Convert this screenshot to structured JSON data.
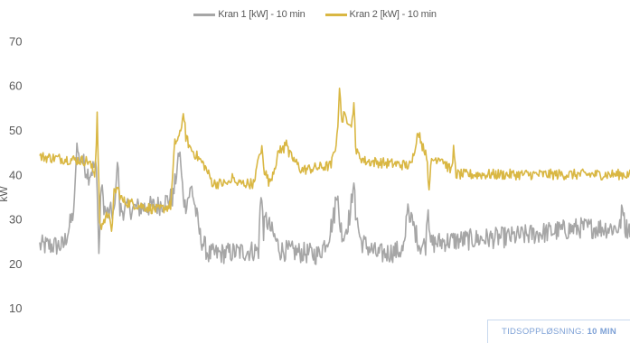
{
  "chart_data": {
    "type": "line",
    "title": "",
    "xlabel": "",
    "ylabel": "kW",
    "ylim": [
      0,
      70
    ],
    "yticks": [
      10,
      20,
      30,
      40,
      50,
      60,
      70
    ],
    "grid": false,
    "legend_position": "top-center",
    "n_points": 700,
    "series": [
      {
        "name": "Kran 1 [kW] - 10 min",
        "color": "#a6a6a6",
        "profile": [
          [
            0,
            24
          ],
          [
            28,
            24
          ],
          [
            38,
            30
          ],
          [
            42,
            34
          ],
          [
            48,
            44
          ],
          [
            58,
            40
          ],
          [
            65,
            42
          ],
          [
            72,
            38
          ],
          [
            78,
            31
          ],
          [
            95,
            32
          ],
          [
            140,
            33
          ],
          [
            158,
            35
          ],
          [
            163,
            42
          ],
          [
            167,
            40
          ],
          [
            172,
            33
          ],
          [
            180,
            37
          ],
          [
            190,
            26
          ],
          [
            200,
            22
          ],
          [
            260,
            23
          ],
          [
            268,
            30
          ],
          [
            275,
            27
          ],
          [
            285,
            23
          ],
          [
            330,
            22
          ],
          [
            342,
            26
          ],
          [
            350,
            32
          ],
          [
            360,
            26
          ],
          [
            372,
            34
          ],
          [
            380,
            25
          ],
          [
            400,
            22
          ],
          [
            430,
            23
          ],
          [
            440,
            30
          ],
          [
            450,
            24
          ],
          [
            480,
            25
          ],
          [
            560,
            26
          ],
          [
            640,
            28
          ],
          [
            697,
            28
          ]
        ],
        "spikes": [
          [
            44,
            48
          ],
          [
            70,
            21
          ],
          [
            92,
            47
          ],
          [
            166,
            44
          ],
          [
            262,
            38
          ],
          [
            352,
            37
          ],
          [
            371,
            38
          ],
          [
            436,
            36
          ],
          [
            460,
            34
          ],
          [
            690,
            33
          ]
        ],
        "noise": 2.4
      },
      {
        "name": "Kran 2 [kW] - 10 min",
        "color": "#d9b743",
        "profile": [
          [
            0,
            44
          ],
          [
            58,
            43
          ],
          [
            65,
            40
          ],
          [
            72,
            28
          ],
          [
            80,
            31
          ],
          [
            88,
            36
          ],
          [
            92,
            37
          ],
          [
            98,
            34
          ],
          [
            140,
            32
          ],
          [
            155,
            33
          ],
          [
            160,
            47
          ],
          [
            170,
            50
          ],
          [
            178,
            46
          ],
          [
            195,
            42
          ],
          [
            205,
            38
          ],
          [
            255,
            38
          ],
          [
            258,
            44
          ],
          [
            262,
            43
          ],
          [
            272,
            38
          ],
          [
            285,
            46
          ],
          [
            298,
            44
          ],
          [
            310,
            41
          ],
          [
            345,
            42
          ],
          [
            352,
            48
          ],
          [
            360,
            53
          ],
          [
            368,
            52
          ],
          [
            374,
            45
          ],
          [
            385,
            43
          ],
          [
            440,
            42
          ],
          [
            446,
            48
          ],
          [
            455,
            46
          ],
          [
            462,
            43
          ],
          [
            475,
            44
          ],
          [
            482,
            42
          ],
          [
            490,
            40
          ],
          [
            697,
            40
          ]
        ],
        "spikes": [
          [
            68,
            54
          ],
          [
            85,
            25
          ],
          [
            170,
            55
          ],
          [
            229,
            40
          ],
          [
            263,
            46
          ],
          [
            292,
            49
          ],
          [
            355,
            60
          ],
          [
            372,
            56
          ],
          [
            449,
            50
          ],
          [
            461,
            37
          ],
          [
            490,
            46
          ]
        ],
        "noise": 1.2
      }
    ]
  },
  "annotation": {
    "label": "TIDSOPPLØSNING:",
    "value": "10 MIN"
  }
}
